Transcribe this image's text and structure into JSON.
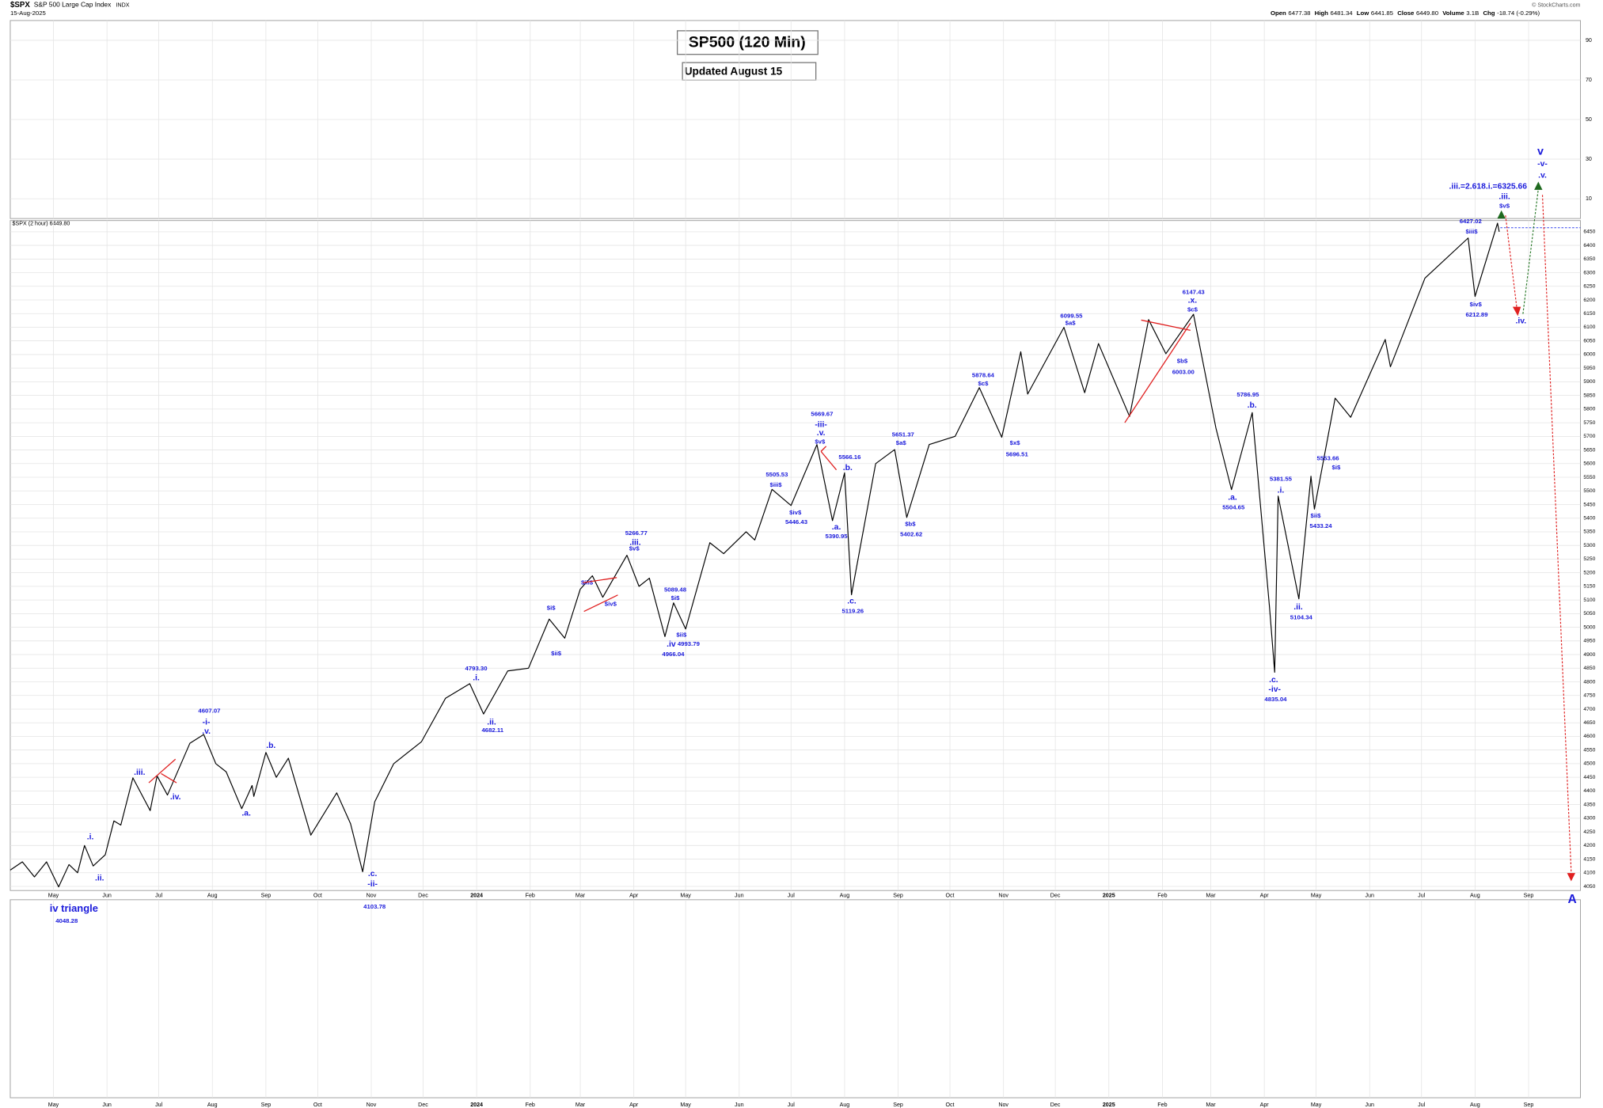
{
  "header": {
    "symbol": "$SPX",
    "name": "S&P 500 Large Cap Index",
    "exchange": "INDX",
    "date": "15-Aug-2025",
    "quote": [
      {
        "label": "Open",
        "value": "6477.38"
      },
      {
        "label": "High",
        "value": "6481.34"
      },
      {
        "label": "Low",
        "value": "6441.85"
      },
      {
        "label": "Close",
        "value": "6449.80"
      },
      {
        "label": "Volume",
        "value": "3.1B"
      },
      {
        "label": "Chg",
        "value": "-18.74 (-0.29%)"
      }
    ],
    "copyright": "© StockCharts.com"
  },
  "indicator": {
    "ylim": [
      0,
      100
    ],
    "yticks": [
      10,
      30,
      50,
      70,
      90
    ]
  },
  "chart_data": {
    "type": "line",
    "title": "SP500 (120 Min)",
    "subtitle": "Updated August 15",
    "legend_label": "$SPX (2 hour) 6449.80",
    "color": "#000000",
    "grid": true,
    "x": [
      "2023-04-06",
      "2023-04-13",
      "2023-04-20",
      "2023-04-27",
      "2023-05-04",
      "2023-05-10",
      "2023-05-15",
      "2023-05-19",
      "2023-05-24",
      "2023-05-31",
      "2023-06-05",
      "2023-06-09",
      "2023-06-16",
      "2023-06-26",
      "2023-06-30",
      "2023-07-06",
      "2023-07-19",
      "2023-07-27",
      "2023-08-03",
      "2023-08-09",
      "2023-08-18",
      "2023-08-24",
      "2023-08-25",
      "2023-09-01",
      "2023-09-07",
      "2023-09-14",
      "2023-09-27",
      "2023-10-12",
      "2023-10-20",
      "2023-10-27",
      "2023-11-03",
      "2023-11-14",
      "2023-11-30",
      "2023-12-14",
      "2023-12-28",
      "2024-01-05",
      "2024-01-19",
      "2024-01-31",
      "2024-02-12",
      "2024-02-21",
      "2024-03-01",
      "2024-03-08",
      "2024-03-14",
      "2024-03-28",
      "2024-04-04",
      "2024-04-10",
      "2024-04-19",
      "2024-04-24",
      "2024-05-01",
      "2024-05-15",
      "2024-05-23",
      "2024-06-05",
      "2024-06-10",
      "2024-06-20",
      "2024-07-01",
      "2024-07-16",
      "2024-07-25",
      "2024-08-01",
      "2024-08-05",
      "2024-08-19",
      "2024-08-30",
      "2024-09-06",
      "2024-09-19",
      "2024-10-04",
      "2024-10-18",
      "2024-10-31",
      "2024-11-11",
      "2024-11-15",
      "2024-12-06",
      "2024-12-18",
      "2024-12-26",
      "2025-01-13",
      "2025-01-24",
      "2025-02-03",
      "2025-02-19",
      "2025-03-04",
      "2025-03-13",
      "2025-03-25",
      "2025-04-04",
      "2025-04-07",
      "2025-04-09",
      "2025-04-21",
      "2025-04-28",
      "2025-04-30",
      "2025-05-12",
      "2025-05-21",
      "2025-06-10",
      "2025-06-13",
      "2025-07-03",
      "2025-07-28",
      "2025-08-01",
      "2025-08-14",
      "2025-08-15"
    ],
    "values": [
      4110,
      4140,
      4085,
      4140,
      4048.28,
      4130,
      4100,
      4200,
      4125,
      4166,
      4290,
      4275,
      4448,
      4328,
      4455,
      4385,
      4575,
      4607.07,
      4500,
      4470,
      4335,
      4420,
      4380,
      4541,
      4450,
      4520,
      4238,
      4393,
      4280,
      4103.78,
      4360,
      4500,
      4580,
      4740,
      4793.3,
      4682.11,
      4840,
      4850,
      5030,
      4960,
      5140,
      5189,
      5110,
      5264,
      5150,
      5180,
      4966.04,
      5089.48,
      4993.79,
      5310,
      5270,
      5350,
      5320,
      5505.53,
      5446.43,
      5669.67,
      5390.95,
      5566.16,
      5119.26,
      5600,
      5651.37,
      5402.62,
      5670,
      5700,
      5878.64,
      5696.51,
      6010,
      5855,
      6099.55,
      5860,
      6040,
      5773,
      6128,
      6003,
      6147.43,
      5730,
      5504.65,
      5786.95,
      5074,
      4835.04,
      5481,
      5104.34,
      5553.66,
      5433.24,
      5840,
      5770,
      6055,
      5955,
      6280,
      6427.02,
      6212.89,
      6481.34,
      6449.8
    ],
    "xlim": [
      "2023-04-06",
      "2025-10-01"
    ],
    "xticks": [
      {
        "value": "2023-05-01",
        "label": "May"
      },
      {
        "value": "2023-06-01",
        "label": "Jun"
      },
      {
        "value": "2023-07-01",
        "label": "Jul"
      },
      {
        "value": "2023-08-01",
        "label": "Aug"
      },
      {
        "value": "2023-09-01",
        "label": "Sep"
      },
      {
        "value": "2023-10-01",
        "label": "Oct"
      },
      {
        "value": "2023-11-01",
        "label": "Nov"
      },
      {
        "value": "2023-12-01",
        "label": "Dec"
      },
      {
        "value": "2024-01-01",
        "label": "2024"
      },
      {
        "value": "2024-02-01",
        "label": "Feb"
      },
      {
        "value": "2024-03-01",
        "label": "Mar"
      },
      {
        "value": "2024-04-01",
        "label": "Apr"
      },
      {
        "value": "2024-05-01",
        "label": "May"
      },
      {
        "value": "2024-06-01",
        "label": "Jun"
      },
      {
        "value": "2024-07-01",
        "label": "Jul"
      },
      {
        "value": "2024-08-01",
        "label": "Aug"
      },
      {
        "value": "2024-09-01",
        "label": "Sep"
      },
      {
        "value": "2024-10-01",
        "label": "Oct"
      },
      {
        "value": "2024-11-01",
        "label": "Nov"
      },
      {
        "value": "2024-12-01",
        "label": "Dec"
      },
      {
        "value": "2025-01-01",
        "label": "2025"
      },
      {
        "value": "2025-02-01",
        "label": "Feb"
      },
      {
        "value": "2025-03-01",
        "label": "Mar"
      },
      {
        "value": "2025-04-01",
        "label": "Apr"
      },
      {
        "value": "2025-05-01",
        "label": "May"
      },
      {
        "value": "2025-06-01",
        "label": "Jun"
      },
      {
        "value": "2025-07-01",
        "label": "Jul"
      },
      {
        "value": "2025-08-01",
        "label": "Aug"
      },
      {
        "value": "2025-09-01",
        "label": "Sep"
      }
    ],
    "ylim": [
      4035,
      6491
    ],
    "yticks": [
      4050,
      4100,
      4150,
      4200,
      4250,
      4300,
      4350,
      4400,
      4450,
      4500,
      4550,
      4600,
      4650,
      4700,
      4750,
      4800,
      4850,
      4900,
      4950,
      5000,
      5050,
      5100,
      5150,
      5200,
      5250,
      5300,
      5350,
      5400,
      5450,
      5500,
      5550,
      5600,
      5650,
      5700,
      5750,
      5800,
      5850,
      5900,
      5950,
      6000,
      6050,
      6100,
      6150,
      6200,
      6250,
      6300,
      6350,
      6400,
      6450
    ],
    "annotations": [
      "4607.07",
      "-i-",
      ".v.",
      ".iii.",
      ".iv.",
      ".i.",
      ".ii.",
      ".b.",
      ".a.",
      ".c.",
      "-ii-",
      "4103.78",
      "iv triangle",
      "4048.28",
      "4793.30",
      ".i.",
      ".ii.",
      "4682.11",
      "$i$",
      "$ii$",
      "$iii$",
      "$iv$",
      "5266.77",
      ".iii.",
      "$v$",
      "5089.48",
      "$i$",
      "$ii$",
      ".iv",
      "4993.79",
      "4966.04",
      "5505.53",
      "$iii$",
      "$iv$",
      "5446.43",
      "5669.67",
      "-iii-",
      ".v.",
      "$v$",
      "5566.16",
      ".b.",
      ".a.",
      "5390.95",
      ".c.",
      "5119.26",
      "5651.37",
      "$a$",
      "$b$",
      "5402.62",
      "5878.64",
      "$c$",
      "$x$",
      "5696.51",
      "6099.55",
      "$a$",
      "6147.43",
      ".x.",
      "$c$",
      "$b$",
      "6003.00",
      "5786.95",
      ".b.",
      ".a.",
      "5504.65",
      "5381.55",
      ".i.",
      "5553.66",
      "$i$",
      "$ii$",
      "5433.24",
      ".ii.",
      "5104.34",
      ".c.",
      "-iv-",
      "4835.04",
      "6427.02",
      "$iii$",
      "$iv$",
      "6212.89",
      ".iii.=2.618.i.=6325.66",
      ".iii.",
      "$v$",
      "v",
      "-v-",
      ".v.",
      ".iv.",
      "A"
    ]
  }
}
